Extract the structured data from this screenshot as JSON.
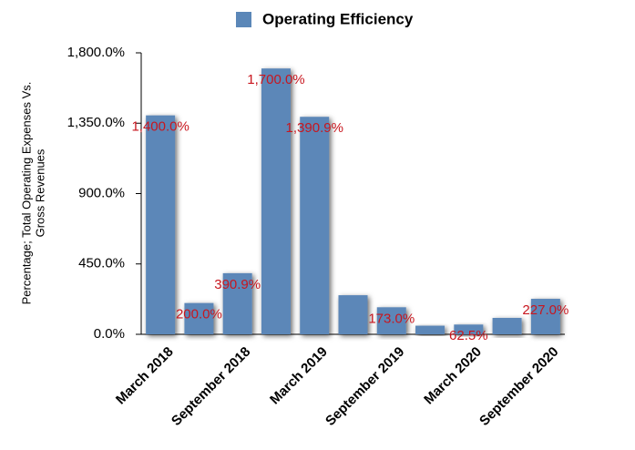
{
  "chart_data": {
    "type": "bar",
    "categories": [
      "March 2018",
      null,
      "September 2018",
      null,
      "March 2019",
      null,
      "September 2019",
      null,
      "March 2020",
      null,
      "September 2020"
    ],
    "series": [
      {
        "name": "Operating Efficiency",
        "color": "#5b87b8",
        "values": [
          1400,
          200,
          390.9,
          1700,
          1390.9,
          250,
          173,
          55,
          62.5,
          105,
          227
        ],
        "value_labels": [
          "1,400.0%",
          "200.0%",
          "390.9%",
          "1,700.0%",
          "1,390.9%",
          null,
          "173.0%",
          null,
          "62.5%",
          null,
          "227.0%"
        ]
      }
    ],
    "y_label": [
      "Percentage; Total Operating Expenses Vs.",
      "Gross Revenues"
    ],
    "ylim": [
      0,
      1800
    ],
    "yticks": [
      {
        "value": 0,
        "label": "0.0%"
      },
      {
        "value": 450,
        "label": "450.0%"
      },
      {
        "value": 900,
        "label": "900.0%"
      },
      {
        "value": 1350,
        "label": "1,350.0%"
      },
      {
        "value": 1800,
        "label": "1,800.0%"
      }
    ],
    "grid": false,
    "legend": "top",
    "label_color": "#c8161e"
  }
}
